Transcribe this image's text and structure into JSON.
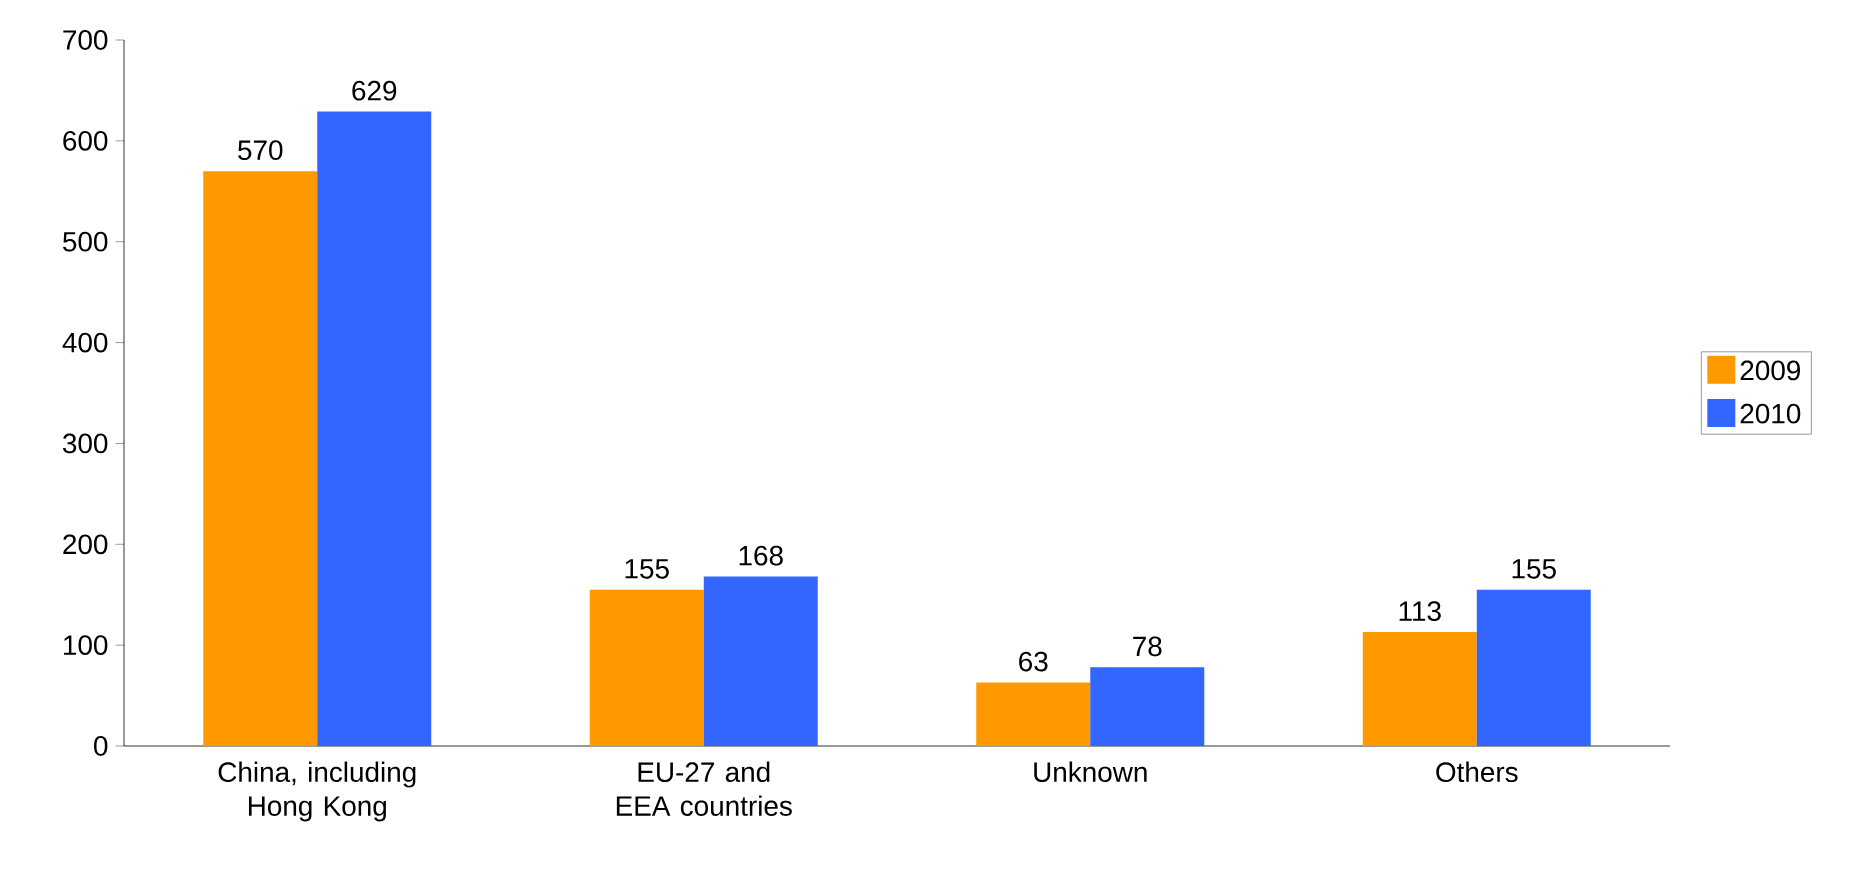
{
  "chart_data": {
    "type": "bar",
    "categories": [
      "China, including Hong Kong",
      "EU-27 and EEA countries",
      "Unknown",
      "Others"
    ],
    "series": [
      {
        "name": "2009",
        "color": "#ff9900",
        "values": [
          570,
          155,
          63,
          113
        ]
      },
      {
        "name": "2010",
        "color": "#3366ff",
        "values": [
          629,
          168,
          78,
          155
        ]
      }
    ],
    "ylim": [
      0,
      700
    ],
    "yticks": [
      0,
      100,
      200,
      300,
      400,
      500,
      600,
      700
    ],
    "data_labels": true,
    "grid": false,
    "legend": "right"
  }
}
